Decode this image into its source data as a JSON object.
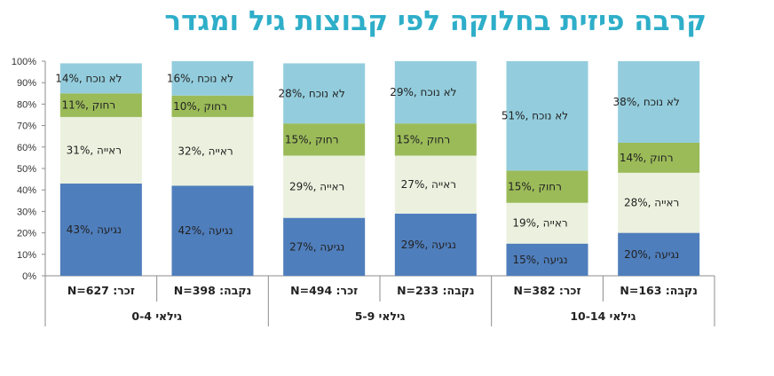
{
  "chart_data": {
    "type": "bar",
    "stacked": true,
    "percent": true,
    "title": "קרבה פיזית בחלוקה לפי קבוצות גיל ומגדר",
    "xlabel": "",
    "ylabel": "",
    "ylim": [
      0,
      100
    ],
    "yticks": [
      "0%",
      "10%",
      "20%",
      "30%",
      "40%",
      "50%",
      "60%",
      "70%",
      "80%",
      "90%",
      "100%"
    ],
    "categories": [
      "זכר: N=627",
      "נקבה: N=398",
      "זכר: N=494",
      "נקבה: N=233",
      "זכר: N=382",
      "נקבה: N=163"
    ],
    "groups": [
      {
        "label": "גילאי 0-4",
        "categories": [
          0,
          1
        ]
      },
      {
        "label": "גילאי 5-9",
        "categories": [
          2,
          3
        ]
      },
      {
        "label": "גילאי 10-14",
        "categories": [
          4,
          5
        ]
      }
    ],
    "series": [
      {
        "name": "נגיעה",
        "color": "#4F7EBC",
        "values": [
          43,
          42,
          27,
          29,
          15,
          20
        ]
      },
      {
        "name": "ראייה",
        "color": "#EBF1DE",
        "values": [
          31,
          32,
          29,
          27,
          19,
          28
        ]
      },
      {
        "name": "רחוק",
        "color": "#9BBB59",
        "values": [
          11,
          10,
          15,
          15,
          15,
          14
        ]
      },
      {
        "name": "לא נוכח",
        "color": "#93CDDD",
        "values": [
          14,
          16,
          28,
          29,
          51,
          38
        ]
      }
    ],
    "grid": false,
    "legend": "none"
  }
}
